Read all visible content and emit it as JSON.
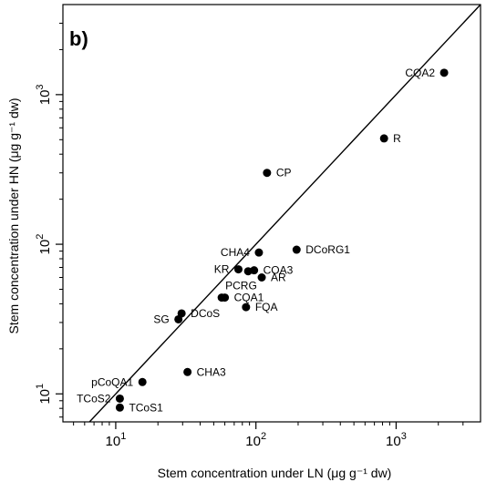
{
  "chart_data": {
    "type": "scatter",
    "panel_label": "b)",
    "xlabel": "Stem concentration under LN (μg g⁻¹ dw)",
    "ylabel": "Stem concentration under HN (μg g⁻¹ dw)",
    "x_scale": "log",
    "y_scale": "log",
    "xlim": [
      4.2,
      4000
    ],
    "ylim": [
      6.5,
      4000
    ],
    "grid": false,
    "reference_line": "1:1",
    "x_ticks": [
      {
        "value": 10,
        "base": "10",
        "exp": "1"
      },
      {
        "value": 100,
        "base": "10",
        "exp": "2"
      },
      {
        "value": 1000,
        "base": "10",
        "exp": "3"
      }
    ],
    "y_ticks": [
      {
        "value": 10,
        "base": "10",
        "exp": "1"
      },
      {
        "value": 100,
        "base": "10",
        "exp": "2"
      },
      {
        "value": 1000,
        "base": "10",
        "exp": "3"
      }
    ],
    "points": [
      {
        "label": "CQA2",
        "x": 2200,
        "y": 1400,
        "pos": "left"
      },
      {
        "label": "R",
        "x": 820,
        "y": 510,
        "pos": "right"
      },
      {
        "label": "CP",
        "x": 120,
        "y": 300,
        "pos": "right"
      },
      {
        "label": "DCoRG1",
        "x": 195,
        "y": 92,
        "pos": "right"
      },
      {
        "label": "CHA4",
        "x": 105,
        "y": 88,
        "pos": "left"
      },
      {
        "label": "KR",
        "x": 75,
        "y": 68,
        "pos": "left"
      },
      {
        "label": "",
        "x": 88,
        "y": 66,
        "pos": "right"
      },
      {
        "label": "COA3",
        "x": 97,
        "y": 67,
        "pos": "right"
      },
      {
        "label": "AR",
        "x": 110,
        "y": 60,
        "pos": "right"
      },
      {
        "label": "PCRG",
        "x": 57,
        "y": 44,
        "pos": "above-right"
      },
      {
        "label": "CQA1",
        "x": 60,
        "y": 44,
        "pos": "right"
      },
      {
        "label": "FQA",
        "x": 85,
        "y": 38,
        "pos": "right"
      },
      {
        "label": "DCoS",
        "x": 29.5,
        "y": 34.5,
        "pos": "right"
      },
      {
        "label": "SG",
        "x": 28,
        "y": 31.5,
        "pos": "left"
      },
      {
        "label": "CHA3",
        "x": 32.5,
        "y": 14,
        "pos": "right"
      },
      {
        "label": "pCoQA1",
        "x": 15.5,
        "y": 12,
        "pos": "left"
      },
      {
        "label": "TCoS2",
        "x": 10.7,
        "y": 9.3,
        "pos": "left"
      },
      {
        "label": "TCoS1",
        "x": 10.7,
        "y": 8.1,
        "pos": "right"
      }
    ]
  }
}
